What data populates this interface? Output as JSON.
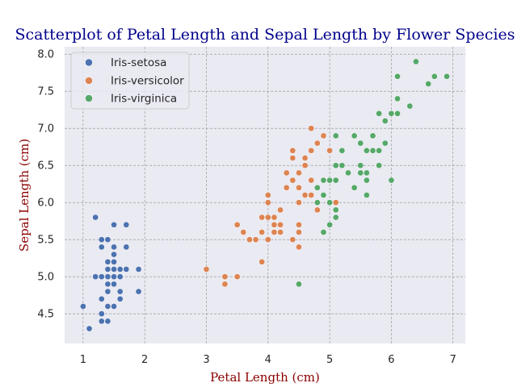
{
  "chart_data": {
    "type": "scatter",
    "title": "Scatterplot of Petal Length and Sepal Length by Flower Species",
    "xlabel": "Petal Length (cm)",
    "ylabel": "Sepal Length (cm)",
    "xlim": [
      0.7,
      7.2
    ],
    "ylim": [
      4.1,
      8.1
    ],
    "xticks": [
      "1",
      "2",
      "3",
      "4",
      "5",
      "6",
      "7"
    ],
    "yticks": [
      "4.5",
      "5.0",
      "5.5",
      "6.0",
      "6.5",
      "7.0",
      "7.5",
      "8.0"
    ],
    "grid": true,
    "legend_position": "top-left",
    "series": [
      {
        "name": "Iris-setosa",
        "color": "#4c72b0",
        "points": [
          [
            1.0,
            4.6
          ],
          [
            1.1,
            4.3
          ],
          [
            1.2,
            5.8
          ],
          [
            1.2,
            5.0
          ],
          [
            1.3,
            5.5
          ],
          [
            1.3,
            5.4
          ],
          [
            1.3,
            5.0
          ],
          [
            1.3,
            4.7
          ],
          [
            1.3,
            4.5
          ],
          [
            1.3,
            4.4
          ],
          [
            1.4,
            5.5
          ],
          [
            1.4,
            5.2
          ],
          [
            1.4,
            5.1
          ],
          [
            1.4,
            5.0
          ],
          [
            1.4,
            4.9
          ],
          [
            1.4,
            4.8
          ],
          [
            1.4,
            4.6
          ],
          [
            1.4,
            4.4
          ],
          [
            1.5,
            5.7
          ],
          [
            1.5,
            5.4
          ],
          [
            1.5,
            5.3
          ],
          [
            1.5,
            5.2
          ],
          [
            1.5,
            5.1
          ],
          [
            1.5,
            5.0
          ],
          [
            1.5,
            4.9
          ],
          [
            1.5,
            4.6
          ],
          [
            1.6,
            5.1
          ],
          [
            1.6,
            5.0
          ],
          [
            1.6,
            4.8
          ],
          [
            1.6,
            4.7
          ],
          [
            1.7,
            5.7
          ],
          [
            1.7,
            5.4
          ],
          [
            1.7,
            5.1
          ],
          [
            1.9,
            5.1
          ],
          [
            1.9,
            4.8
          ]
        ]
      },
      {
        "name": "Iris-versicolor",
        "color": "#dd8452",
        "points": [
          [
            3.0,
            5.1
          ],
          [
            3.3,
            5.0
          ],
          [
            3.3,
            4.9
          ],
          [
            3.5,
            5.7
          ],
          [
            3.5,
            5.0
          ],
          [
            3.6,
            5.6
          ],
          [
            3.7,
            5.5
          ],
          [
            3.8,
            5.5
          ],
          [
            3.9,
            5.8
          ],
          [
            3.9,
            5.6
          ],
          [
            3.9,
            5.2
          ],
          [
            4.0,
            6.1
          ],
          [
            4.0,
            6.0
          ],
          [
            4.0,
            5.8
          ],
          [
            4.0,
            5.5
          ],
          [
            4.1,
            5.8
          ],
          [
            4.1,
            5.7
          ],
          [
            4.1,
            5.6
          ],
          [
            4.2,
            5.9
          ],
          [
            4.2,
            5.7
          ],
          [
            4.2,
            5.6
          ],
          [
            4.3,
            6.4
          ],
          [
            4.3,
            6.2
          ],
          [
            4.4,
            6.7
          ],
          [
            4.4,
            6.6
          ],
          [
            4.4,
            6.3
          ],
          [
            4.4,
            5.5
          ],
          [
            4.5,
            6.4
          ],
          [
            4.5,
            6.2
          ],
          [
            4.5,
            6.0
          ],
          [
            4.5,
            5.7
          ],
          [
            4.5,
            5.6
          ],
          [
            4.5,
            5.4
          ],
          [
            4.6,
            6.6
          ],
          [
            4.6,
            6.5
          ],
          [
            4.6,
            6.1
          ],
          [
            4.7,
            7.0
          ],
          [
            4.7,
            6.7
          ],
          [
            4.7,
            6.3
          ],
          [
            4.7,
            6.1
          ],
          [
            4.8,
            6.8
          ],
          [
            4.8,
            5.9
          ],
          [
            4.9,
            6.9
          ],
          [
            5.0,
            6.7
          ],
          [
            5.1,
            6.0
          ]
        ]
      },
      {
        "name": "Iris-virginica",
        "color": "#55a868",
        "points": [
          [
            4.5,
            4.9
          ],
          [
            4.8,
            6.2
          ],
          [
            4.8,
            6.0
          ],
          [
            4.9,
            6.3
          ],
          [
            4.9,
            6.1
          ],
          [
            4.9,
            5.6
          ],
          [
            5.0,
            6.3
          ],
          [
            5.0,
            6.0
          ],
          [
            5.0,
            5.7
          ],
          [
            5.1,
            6.9
          ],
          [
            5.1,
            6.5
          ],
          [
            5.1,
            6.3
          ],
          [
            5.1,
            5.9
          ],
          [
            5.1,
            5.8
          ],
          [
            5.2,
            6.7
          ],
          [
            5.2,
            6.5
          ],
          [
            5.3,
            6.4
          ],
          [
            5.4,
            6.9
          ],
          [
            5.4,
            6.2
          ],
          [
            5.5,
            6.8
          ],
          [
            5.5,
            6.5
          ],
          [
            5.5,
            6.4
          ],
          [
            5.6,
            6.7
          ],
          [
            5.6,
            6.4
          ],
          [
            5.6,
            6.3
          ],
          [
            5.6,
            6.1
          ],
          [
            5.7,
            6.9
          ],
          [
            5.7,
            6.7
          ],
          [
            5.8,
            7.2
          ],
          [
            5.8,
            6.7
          ],
          [
            5.8,
            6.5
          ],
          [
            5.9,
            7.1
          ],
          [
            5.9,
            6.8
          ],
          [
            6.0,
            7.2
          ],
          [
            6.0,
            6.3
          ],
          [
            6.1,
            7.7
          ],
          [
            6.1,
            7.4
          ],
          [
            6.1,
            7.2
          ],
          [
            6.3,
            7.3
          ],
          [
            6.4,
            7.9
          ],
          [
            6.6,
            7.6
          ],
          [
            6.7,
            7.7
          ],
          [
            6.9,
            7.7
          ]
        ]
      }
    ]
  }
}
